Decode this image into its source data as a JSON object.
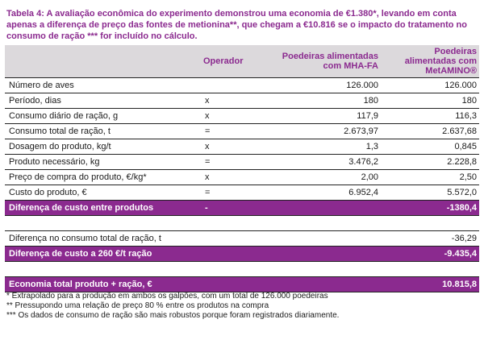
{
  "caption": "Tabela 4: A avaliação econômica do experimento demonstrou uma economia de €1.380*, levando em conta apenas a diferença de preço das fontes de metionina**, que chegam a €10.816 se o impacto do tratamento no consumo de ração *** for incluído no cálculo.",
  "header": {
    "col0": "",
    "col1": "Operador",
    "col2": "Poedeiras alimentadas com MHA-FA",
    "col3": "Poedeiras alimentadas com MetAMINO®"
  },
  "rows": [
    {
      "label": "Número de aves",
      "op": "",
      "mha": "126.000",
      "met": "126.000"
    },
    {
      "label": "Período, dias",
      "op": "x",
      "mha": "180",
      "met": "180"
    },
    {
      "label": "Consumo diário de ração, g",
      "op": "x",
      "mha": "117,9",
      "met": "116,3"
    },
    {
      "label": "Consumo total de ração, t",
      "op": "=",
      "mha": "2.673,97",
      "met": "2.637,68"
    },
    {
      "label": "Dosagem do produto, kg/t",
      "op": "x",
      "mha": "1,3",
      "met": "0,845"
    },
    {
      "label": "Produto necessário, kg",
      "op": "=",
      "mha": "3.476,2",
      "met": "2.228,8"
    },
    {
      "label": "Preço de compra do produto, €/kg*",
      "op": "x",
      "mha": "2,00",
      "met": "2,50"
    },
    {
      "label": "Custo do produto, €",
      "op": "=",
      "mha": "6.952,4",
      "met": "5.572,0"
    },
    {
      "label": "Diferença de custo entre produtos",
      "op": "-",
      "mha": "",
      "met": "-1380,4"
    },
    {
      "label": "",
      "op": "",
      "mha": "",
      "met": ""
    },
    {
      "label": "Diferença no consumo total de ração, t",
      "op": "",
      "mha": "",
      "met": "-36,29"
    },
    {
      "label": "Diferença de custo a 260 €/t ração",
      "op": "",
      "mha": "",
      "met": "-9.435,4"
    },
    {
      "label": "",
      "op": "",
      "mha": "",
      "met": ""
    },
    {
      "label": "Economia total produto + ração, €",
      "op": "",
      "mha": "",
      "met": "10.815,8"
    }
  ],
  "notes": [
    "* Extrapolado para a produção em ambos os galpões, com um total de 126.000 poedeiras",
    "** Pressupondo uma relação de preço 80 % entre os produtos na compra",
    "*** Os dados de consumo de ração são mais robustos porque foram registrados diariamente."
  ],
  "colors": {
    "accent": "#8b2a8f",
    "header_bg": "#dcd9dc"
  }
}
